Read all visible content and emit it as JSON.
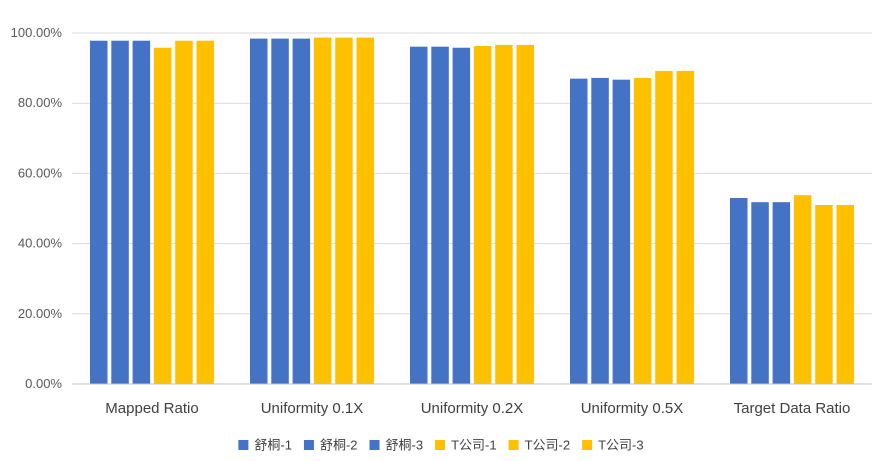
{
  "chart_data": {
    "type": "bar",
    "title": "",
    "xlabel": "",
    "ylabel": "",
    "ylim": [
      0,
      100
    ],
    "yticks": [
      0,
      20,
      40,
      60,
      80,
      100
    ],
    "ytick_labels": [
      "0.00%",
      "20.00%",
      "40.00%",
      "60.00%",
      "80.00%",
      "100.00%"
    ],
    "grid": true,
    "legend_position": "bottom",
    "categories": [
      "Mapped Ratio",
      "Uniformity 0.1X",
      "Uniformity 0.2X",
      "Uniformity 0.5X",
      "Target Data Ratio"
    ],
    "series": [
      {
        "name": "舒桐-1",
        "color": "#4472C4",
        "values": [
          97.8,
          98.4,
          96.1,
          87.0,
          53.0
        ]
      },
      {
        "name": "舒桐-2",
        "color": "#4472C4",
        "values": [
          97.8,
          98.4,
          96.1,
          87.2,
          51.8
        ]
      },
      {
        "name": "舒桐-3",
        "color": "#4472C4",
        "values": [
          97.8,
          98.4,
          95.8,
          86.7,
          51.8
        ]
      },
      {
        "name": "T公司-1",
        "color": "#FFC000",
        "values": [
          95.8,
          98.7,
          96.3,
          87.2,
          53.8
        ]
      },
      {
        "name": "T公司-2",
        "color": "#FFC000",
        "values": [
          97.8,
          98.7,
          96.6,
          89.2,
          51.0
        ]
      },
      {
        "name": "T公司-3",
        "color": "#FFC000",
        "values": [
          97.8,
          98.7,
          96.6,
          89.2,
          51.0
        ]
      }
    ]
  }
}
